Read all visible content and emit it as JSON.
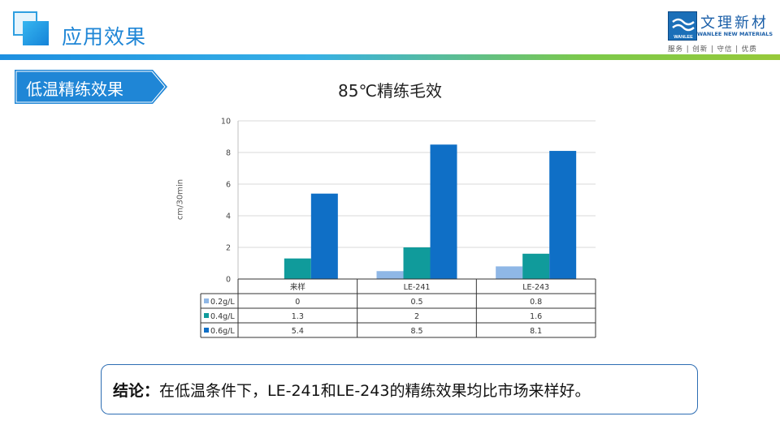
{
  "header": {
    "title": "应用效果"
  },
  "logo": {
    "cn": "文理新材",
    "en": "WANLEE NEW MATERIALS",
    "mark_text": "WANLEE",
    "slogan": "服务 | 创新 | 守信 | 优质"
  },
  "section": {
    "label": "低温精练效果"
  },
  "colors": {
    "series_1": "#8fb7e6",
    "series_2": "#109b9b",
    "series_3": "#0f6fc6",
    "accent": "#1f86d6"
  },
  "chart_data": {
    "type": "bar",
    "title": "85℃精练毛效",
    "ylabel": "cm/30min",
    "xlabel": "",
    "ylim": [
      0,
      10
    ],
    "yticks": [
      0,
      2,
      4,
      6,
      8,
      10
    ],
    "categories": [
      "来样",
      "LE-241",
      "LE-243"
    ],
    "series": [
      {
        "name": "0.2g/L",
        "values": [
          0,
          0.5,
          0.8
        ]
      },
      {
        "name": "0.4g/L",
        "values": [
          1.3,
          2,
          1.6
        ]
      },
      {
        "name": "0.6g/L",
        "values": [
          5.4,
          8.5,
          8.1
        ]
      }
    ],
    "grid": true,
    "legend": "data-table"
  },
  "conclusion": {
    "prefix": "结论：",
    "text": "在低温条件下，LE-241和LE-243的精练效果均比市场来样好。"
  }
}
